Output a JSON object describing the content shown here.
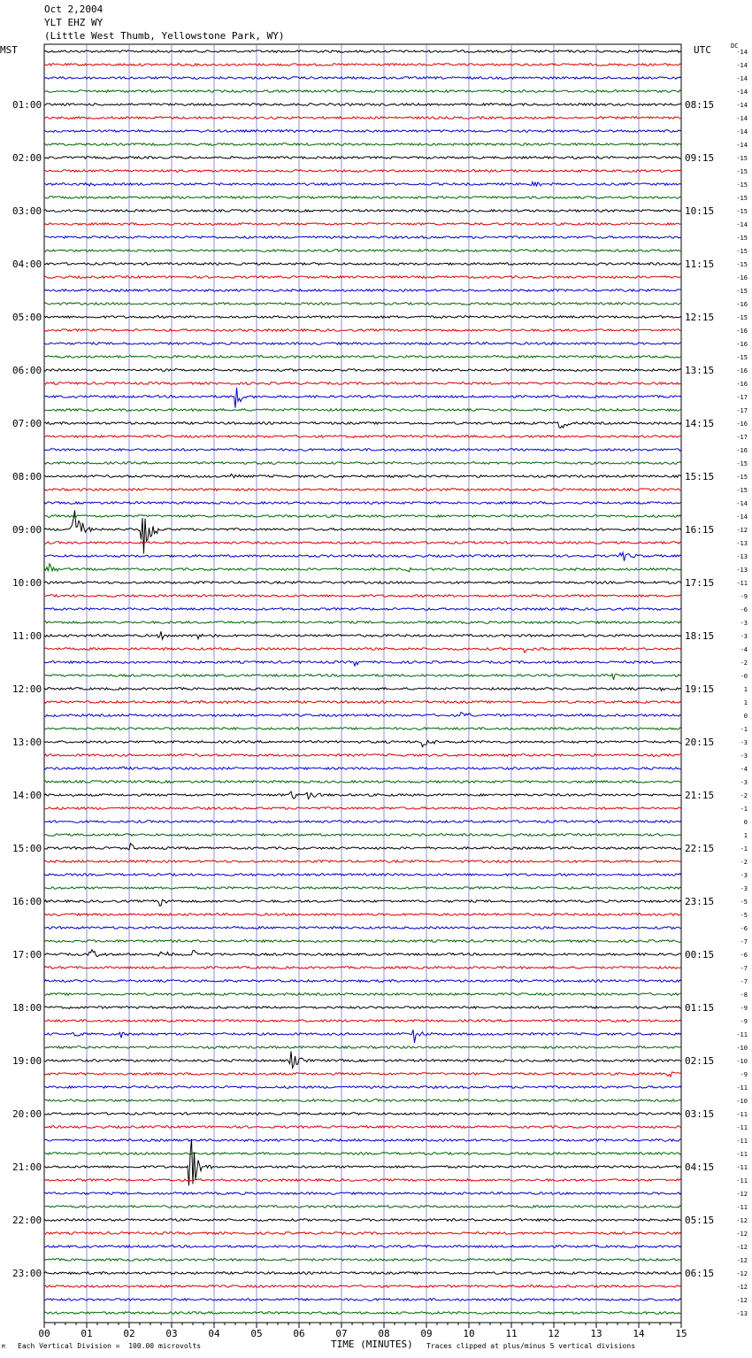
{
  "header": {
    "date": "Oct 2,2004",
    "station": "YLT EHZ WY",
    "location": "(Little West Thumb, Yellowstone Park, WY)"
  },
  "left_tz": "MST",
  "right_tz": "UTC",
  "dc_label": "DC",
  "footer": {
    "scale_note": "Each Vertical Division =  100.00 microvolts",
    "clip_note": "Traces clipped at plus/minus 5 vertical divisions",
    "corner_mark": "M"
  },
  "colors": {
    "trace_cycle": [
      "#000000",
      "#dd0000",
      "#0000cc",
      "#006600"
    ],
    "grid": "#7777cc"
  },
  "chart_data": {
    "type": "line",
    "xlabel": "TIME (MINUTES)",
    "xlim": [
      0,
      15
    ],
    "x_ticks": [
      "00",
      "01",
      "02",
      "03",
      "04",
      "05",
      "06",
      "07",
      "08",
      "09",
      "10",
      "11",
      "12",
      "13",
      "14",
      "15"
    ],
    "rows": 96,
    "left_hour_labels": [
      "01:00",
      "02:00",
      "03:00",
      "04:00",
      "05:00",
      "06:00",
      "07:00",
      "08:00",
      "09:00",
      "10:00",
      "11:00",
      "12:00",
      "13:00",
      "14:00",
      "15:00",
      "16:00",
      "17:00",
      "18:00",
      "19:00",
      "20:00",
      "21:00",
      "22:00",
      "23:00"
    ],
    "right_hour_labels": [
      "08:15",
      "09:15",
      "10:15",
      "11:15",
      "12:15",
      "13:15",
      "14:15",
      "15:15",
      "16:15",
      "17:15",
      "18:15",
      "19:15",
      "20:15",
      "21:15",
      "22:15",
      "23:15",
      "00:15",
      "01:15",
      "02:15",
      "03:15",
      "04:15",
      "05:15",
      "06:15"
    ],
    "dc_offsets": [
      "-14",
      "-14",
      "-14",
      "-14",
      "-14",
      "-14",
      "-14",
      "-14",
      "-15",
      "-15",
      "-15",
      "-15",
      "-15",
      "-14",
      "-15",
      "-15",
      "-15",
      "-16",
      "-15",
      "-16",
      "-15",
      "-16",
      "-16",
      "-15",
      "-16",
      "-16",
      "-17",
      "-17",
      "-16",
      "-17",
      "-16",
      "-15",
      "-15",
      "-15",
      "-14",
      "-14",
      "-12",
      "-13",
      "-13",
      "-13",
      "-11",
      "-9",
      "-6",
      "-3",
      "-3",
      "-4",
      "-2",
      "-0",
      "1",
      "1",
      "0",
      "-1",
      "-3",
      "-3",
      "-4",
      "-3",
      "-2",
      "-1",
      "0",
      "1",
      "-1",
      "-2",
      "-3",
      "-3",
      "-5",
      "-5",
      "-6",
      "-7",
      "-6",
      "-7",
      "-7",
      "-8",
      "-9",
      "-9",
      "-11",
      "-10",
      "-10",
      "-9",
      "-11",
      "-10",
      "-11",
      "-11",
      "-11",
      "-11",
      "-11",
      "-11",
      "-12",
      "-11",
      "-12",
      "-12",
      "-12",
      "-12",
      "-12",
      "-12",
      "-12",
      "-13"
    ],
    "events": [
      {
        "row": 10,
        "minute": 1.0,
        "amp": 3
      },
      {
        "row": 10,
        "minute": 11.5,
        "amp": 4
      },
      {
        "row": 11,
        "minute": 1.05,
        "amp": 3
      },
      {
        "row": 26,
        "minute": 4.5,
        "amp": 14
      },
      {
        "row": 28,
        "minute": 12.1,
        "amp": 9
      },
      {
        "row": 32,
        "minute": 4.4,
        "amp": 3
      },
      {
        "row": 36,
        "minute": 0.65,
        "amp": 40
      },
      {
        "row": 36,
        "minute": 2.3,
        "amp": 45
      },
      {
        "row": 38,
        "minute": 13.6,
        "amp": 8
      },
      {
        "row": 39,
        "minute": 0.1,
        "amp": 8
      },
      {
        "row": 39,
        "minute": 8.4,
        "amp": 7
      },
      {
        "row": 41,
        "minute": 4.5,
        "amp": 4
      },
      {
        "row": 44,
        "minute": 2.7,
        "amp": 6
      },
      {
        "row": 44,
        "minute": 3.6,
        "amp": 5
      },
      {
        "row": 45,
        "minute": 11.3,
        "amp": 4
      },
      {
        "row": 46,
        "minute": 7.3,
        "amp": 4
      },
      {
        "row": 47,
        "minute": 13.4,
        "amp": 6
      },
      {
        "row": 48,
        "minute": 14.5,
        "amp": 4
      },
      {
        "row": 49,
        "minute": 4.1,
        "amp": 5
      },
      {
        "row": 50,
        "minute": 9.8,
        "amp": 6
      },
      {
        "row": 52,
        "minute": 8.9,
        "amp": 8
      },
      {
        "row": 54,
        "minute": 1.8,
        "amp": 4
      },
      {
        "row": 56,
        "minute": 5.8,
        "amp": 7
      },
      {
        "row": 56,
        "minute": 6.2,
        "amp": 8
      },
      {
        "row": 60,
        "minute": 2.0,
        "amp": 6
      },
      {
        "row": 60,
        "minute": 2.8,
        "amp": 4
      },
      {
        "row": 64,
        "minute": 2.7,
        "amp": 7
      },
      {
        "row": 68,
        "minute": 1.1,
        "amp": 7
      },
      {
        "row": 68,
        "minute": 2.7,
        "amp": 6
      },
      {
        "row": 68,
        "minute": 3.5,
        "amp": 8
      },
      {
        "row": 74,
        "minute": 0.7,
        "amp": 5
      },
      {
        "row": 74,
        "minute": 1.8,
        "amp": 5
      },
      {
        "row": 74,
        "minute": 8.7,
        "amp": 12
      },
      {
        "row": 76,
        "minute": 5.8,
        "amp": 12
      },
      {
        "row": 77,
        "minute": 14.7,
        "amp": 7
      },
      {
        "row": 84,
        "minute": 3.4,
        "amp": 55
      }
    ]
  }
}
